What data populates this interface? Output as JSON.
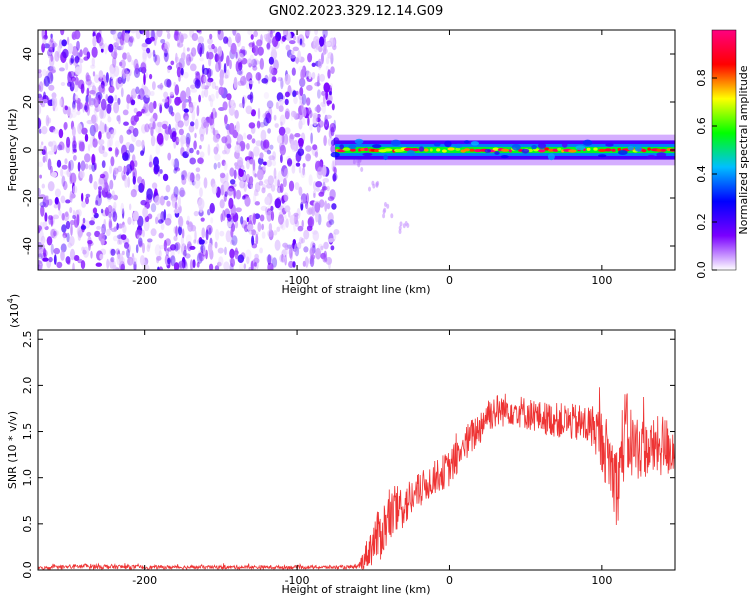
{
  "title": "GN02.2023.329.12.14.G09",
  "chart_data": [
    {
      "type": "heatmap",
      "xlabel": "Height of straight line (km)",
      "ylabel": "Frequency (Hz)",
      "xlim": [
        -270,
        148
      ],
      "ylim": [
        -50,
        50
      ],
      "xticks": [
        -200,
        -100,
        0,
        100
      ],
      "xtick_labels": [
        "-200",
        "-100",
        "0",
        "100"
      ],
      "yticks": [
        -40,
        -20,
        0,
        20,
        40
      ],
      "ytick_labels": [
        "-40",
        "-20",
        "0",
        "20",
        "40"
      ],
      "noise_region_x": [
        -270,
        -75
      ],
      "signal_band": {
        "x_start": -75,
        "x_end": 148,
        "center_hz": 0,
        "half_width_hz": 4
      },
      "tail": [
        [
          -60,
          -6
        ],
        [
          -50,
          -16
        ],
        [
          -40,
          -25
        ],
        [
          -30,
          -33
        ]
      ],
      "colorbar": {
        "label": "Normalized spectral amplitude",
        "range": [
          0,
          1
        ],
        "ticks": [
          0.0,
          0.2,
          0.4,
          0.6,
          0.8
        ],
        "tick_labels": [
          "0.0",
          "0.2",
          "0.4",
          "0.6",
          "0.8"
        ],
        "stops": [
          "#ffffff",
          "#7a00ff",
          "#0000ff",
          "#00bfff",
          "#00ff00",
          "#ffff00",
          "#ff0000",
          "#ff0080"
        ]
      },
      "grid": false
    },
    {
      "type": "line",
      "xlabel": "Height of straight line (km)",
      "ylabel": "SNR (10 * v/v)",
      "yscale_label": "(x10",
      "yscale_exp": "4",
      "yscale_close": ")",
      "xlim": [
        -270,
        148
      ],
      "ylim": [
        0,
        2.6
      ],
      "xticks": [
        -200,
        -100,
        0,
        100
      ],
      "xtick_labels": [
        "-200",
        "-100",
        "0",
        "100"
      ],
      "yticks": [
        0.0,
        0.5,
        1.0,
        1.5,
        2.0,
        2.5
      ],
      "ytick_labels": [
        "0.0",
        "0.5",
        "1.0",
        "1.5",
        "2.0",
        "2.5"
      ],
      "series": [
        {
          "color": "#ee3333",
          "x": [
            -270,
            -240,
            -200,
            -150,
            -100,
            -60,
            -55,
            -50,
            -45,
            -40,
            -30,
            -20,
            -10,
            0,
            10,
            20,
            25,
            40,
            60,
            80,
            95,
            100,
            105,
            110,
            115,
            120,
            130,
            140,
            148
          ],
          "y": [
            0.02,
            0.04,
            0.03,
            0.03,
            0.03,
            0.03,
            0.15,
            0.3,
            0.4,
            0.55,
            0.7,
            0.85,
            1.0,
            1.1,
            1.35,
            1.55,
            1.7,
            1.75,
            1.65,
            1.6,
            1.55,
            1.4,
            1.2,
            0.9,
            1.5,
            1.35,
            1.3,
            1.35,
            1.3
          ],
          "noise": [
            0.015,
            0.03,
            0.02,
            0.02,
            0.02,
            0.02,
            0.15,
            0.25,
            0.3,
            0.3,
            0.25,
            0.2,
            0.18,
            0.2,
            0.2,
            0.2,
            0.2,
            0.18,
            0.18,
            0.2,
            0.25,
            0.35,
            0.4,
            0.45,
            0.5,
            0.4,
            0.3,
            0.35,
            0.3
          ]
        }
      ],
      "grid": false
    }
  ]
}
